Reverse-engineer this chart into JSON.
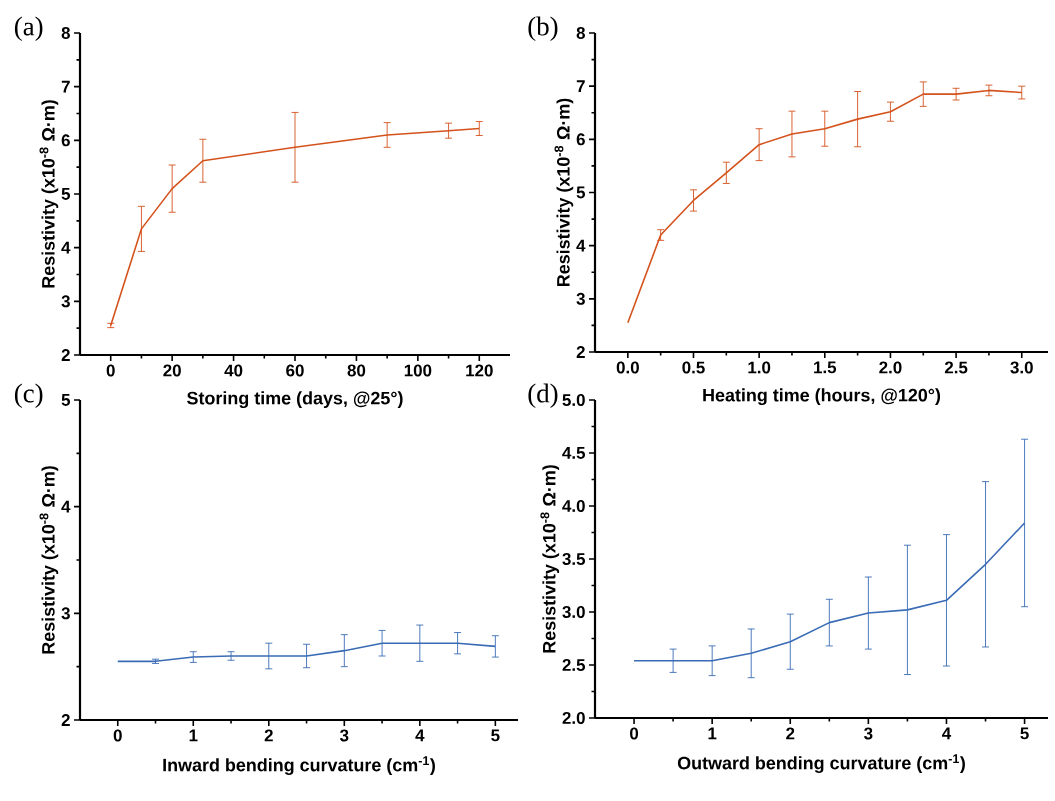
{
  "chart_data": [
    {
      "type": "line",
      "title": "(a)",
      "xlabel": "Storing time (days, @25°)",
      "ylabel": "Resistivity (x10$^{-8}$ Ω·m)",
      "xlim": [
        -10,
        130
      ],
      "ylim": [
        2,
        8
      ],
      "xticks": [
        0,
        20,
        40,
        60,
        80,
        100,
        120
      ],
      "yticks": [
        2,
        3,
        4,
        5,
        6,
        7,
        8
      ],
      "x": [
        0,
        10,
        20,
        30,
        60,
        90,
        110,
        120
      ],
      "series": [
        {
          "color": "#d4521c",
          "values": [
            2.55,
            4.35,
            5.1,
            5.62,
            5.87,
            6.1,
            6.18,
            6.22
          ],
          "errors": [
            0.04,
            0.42,
            0.44,
            0.4,
            0.65,
            0.23,
            0.14,
            0.13
          ]
        }
      ]
    },
    {
      "type": "line",
      "title": "(b)",
      "xlabel": "Heating time (hours, @120°)",
      "ylabel": "Resistivity (x10$^{-8}$ Ω·m)",
      "xlim": [
        -0.25,
        3.2
      ],
      "ylim": [
        2,
        8
      ],
      "xticks": [
        {
          "value": 0,
          "label": "0.0"
        },
        0.5,
        {
          "value": 1,
          "label": "1.0"
        },
        1.5,
        {
          "value": 2,
          "label": "2.0"
        },
        2.5,
        {
          "value": 3,
          "label": "3.0"
        }
      ],
      "yticks": [
        2,
        3,
        4,
        5,
        6,
        7,
        8
      ],
      "x": [
        0,
        0.25,
        0.5,
        0.75,
        1,
        1.25,
        1.5,
        1.75,
        2,
        2.25,
        2.5,
        2.75,
        3
      ],
      "series": [
        {
          "color": "#d4521c",
          "values": [
            2.55,
            4.2,
            4.85,
            5.37,
            5.9,
            6.1,
            6.2,
            6.38,
            6.52,
            6.85,
            6.85,
            6.92,
            6.88
          ],
          "errors": [
            null,
            0.1,
            0.2,
            0.2,
            0.3,
            0.43,
            0.33,
            0.52,
            0.18,
            0.23,
            0.11,
            0.1,
            0.12
          ]
        }
      ]
    },
    {
      "type": "line",
      "title": "(c)",
      "xlabel": "Inward bending curvature (cm$^{-1}$)",
      "ylabel": "Resistivity (x10$^{-8}$ Ω·m)",
      "xlim": [
        -0.5,
        5.3
      ],
      "ylim": [
        2,
        5
      ],
      "xticks": [
        0,
        1,
        2,
        3,
        4,
        5
      ],
      "yticks": [
        2,
        3,
        4,
        5
      ],
      "x": [
        0,
        0.5,
        1,
        1.5,
        2,
        2.5,
        3,
        3.5,
        4,
        4.5,
        5
      ],
      "series": [
        {
          "color": "#3a6bb5",
          "values": [
            2.55,
            2.55,
            2.59,
            2.6,
            2.6,
            2.6,
            2.65,
            2.72,
            2.72,
            2.72,
            2.69
          ],
          "errors": [
            null,
            0.02,
            0.05,
            0.04,
            0.12,
            0.11,
            0.15,
            0.12,
            0.17,
            0.1,
            0.1
          ]
        }
      ]
    },
    {
      "type": "line",
      "title": "(d)",
      "xlabel": "Outward bending curvature (cm$^{-1}$)",
      "ylabel": "Resistivity (x10$^{-8}$ Ω·m)",
      "xlim": [
        -0.5,
        5.3
      ],
      "ylim": [
        2,
        5
      ],
      "xticks": [
        0,
        1,
        2,
        3,
        4,
        5
      ],
      "yticks": [
        {
          "value": 2,
          "label": "2.0"
        },
        2.5,
        {
          "value": 3,
          "label": "3.0"
        },
        3.5,
        {
          "value": 4,
          "label": "4.0"
        },
        4.5,
        {
          "value": 5,
          "label": "5.0"
        }
      ],
      "x": [
        0,
        0.5,
        1,
        1.5,
        2,
        2.5,
        3,
        3.5,
        4,
        4.5,
        5
      ],
      "series": [
        {
          "color": "#3a6bb5",
          "values": [
            2.54,
            2.54,
            2.54,
            2.61,
            2.72,
            2.9,
            2.99,
            3.02,
            3.11,
            3.45,
            3.84
          ],
          "errors": [
            null,
            0.11,
            0.14,
            0.23,
            0.26,
            0.22,
            0.34,
            0.61,
            0.62,
            0.78,
            0.79
          ]
        }
      ]
    }
  ]
}
